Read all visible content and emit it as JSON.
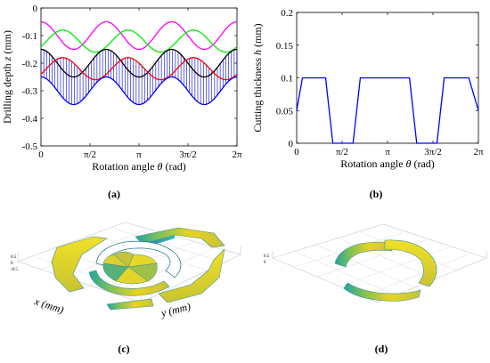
{
  "panels": {
    "a": {
      "label": "(a)"
    },
    "b": {
      "label": "(b)"
    },
    "c": {
      "label": "(c)",
      "xlabel": "x (mm)",
      "ylabel": "y (mm)"
    },
    "d": {
      "label": "(d)"
    }
  },
  "chart_data": [
    {
      "id": "a",
      "type": "line",
      "xlabel_text": "Rotation angle ",
      "xlabel_symbol": "θ",
      "xlabel_unit": " (rad)",
      "ylabel_text": "Drilling depth ",
      "ylabel_symbol": "z",
      "ylabel_unit": " (mm)",
      "xlim": [
        0,
        6.2832
      ],
      "ylim": [
        -0.5,
        0
      ],
      "xticks": [
        {
          "v": 0,
          "label": "0"
        },
        {
          "v": 1.5708,
          "label": "π/2"
        },
        {
          "v": 3.1416,
          "label": "π"
        },
        {
          "v": 4.7124,
          "label": "3π/2"
        },
        {
          "v": 6.2832,
          "label": "2π"
        }
      ],
      "yticks": [
        {
          "v": 0,
          "label": "0"
        },
        {
          "v": -0.1,
          "label": "-0.1"
        },
        {
          "v": -0.2,
          "label": "-0.2"
        },
        {
          "v": -0.3,
          "label": "-0.3"
        },
        {
          "v": -0.4,
          "label": "-0.4"
        },
        {
          "v": -0.5,
          "label": "-0.5"
        }
      ],
      "series": [
        {
          "color": "#ff00ff",
          "mean": -0.1,
          "amp": 0.05,
          "phase": 0.0
        },
        {
          "color": "#00ee00",
          "mean": -0.12,
          "amp": 0.04,
          "phase": 2.094
        },
        {
          "color": "#000000",
          "mean": -0.2,
          "amp": 0.05,
          "phase": 0.0
        },
        {
          "color": "#ff0000",
          "mean": -0.22,
          "amp": 0.04,
          "phase": 2.094
        },
        {
          "color": "#0000ff",
          "mean": -0.3,
          "amp": 0.05,
          "phase": 0.0
        }
      ],
      "fill": {
        "color": "#0000cc",
        "upper": "max(black, red)",
        "lower": "blue",
        "lines": 70
      }
    },
    {
      "id": "b",
      "type": "line",
      "xlabel_text": "Rotation angle ",
      "xlabel_symbol": "θ",
      "xlabel_unit": " (rad)",
      "ylabel_text": "Cutting  thickness ",
      "ylabel_symbol": "h",
      "ylabel_unit": " (mm)",
      "xlim": [
        0,
        6.2832
      ],
      "ylim": [
        0,
        0.2
      ],
      "xticks": [
        {
          "v": 0,
          "label": "0"
        },
        {
          "v": 1.5708,
          "label": "π/2"
        },
        {
          "v": 3.1416,
          "label": "π"
        },
        {
          "v": 4.7124,
          "label": "3π/2"
        },
        {
          "v": 6.2832,
          "label": "2π"
        }
      ],
      "yticks": [
        {
          "v": 0,
          "label": "0"
        },
        {
          "v": 0.05,
          "label": "0.05"
        },
        {
          "v": 0.1,
          "label": "0.1"
        },
        {
          "v": 0.15,
          "label": "0.15"
        },
        {
          "v": 0.2,
          "label": "0.2"
        }
      ],
      "series": [
        {
          "color": "#0000ff",
          "x": [
            0,
            0.2,
            1.0,
            1.25,
            1.95,
            2.2,
            2.85,
            3.1,
            3.9,
            4.15,
            4.85,
            5.1,
            5.95,
            6.2832
          ],
          "y": [
            0.05,
            0.1,
            0.1,
            0.0,
            0.0,
            0.1,
            0.1,
            0.1,
            0.1,
            0.0,
            0.0,
            0.1,
            0.1,
            0.05
          ]
        }
      ]
    }
  ]
}
